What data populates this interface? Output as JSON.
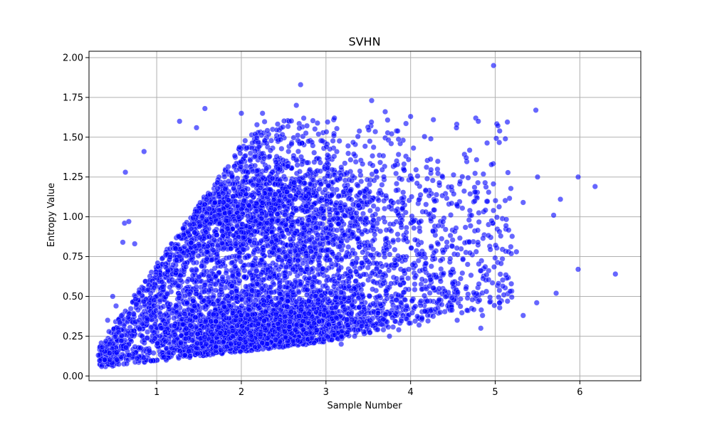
{
  "chart_data": {
    "type": "scatter",
    "title": "SVHN",
    "xlabel": "Sample Number",
    "ylabel": "Entropy Value",
    "xlim": [
      0.2,
      6.72
    ],
    "ylim": [
      -0.03,
      2.04
    ],
    "xticks": [
      1,
      2,
      3,
      4,
      5,
      6
    ],
    "yticks": [
      0.0,
      0.25,
      0.5,
      0.75,
      1.0,
      1.25,
      1.5,
      1.75,
      2.0
    ],
    "ytick_labels": [
      "0.00",
      "0.25",
      "0.50",
      "0.75",
      "1.00",
      "1.25",
      "1.50",
      "1.75",
      "2.00"
    ],
    "grid": true,
    "marker_color": "#0000ff",
    "marker_opacity": 0.6,
    "point_count_approx": 6000,
    "points": [
      [
        4.98,
        1.95
      ],
      [
        2.7,
        1.83
      ],
      [
        3.54,
        1.73
      ],
      [
        2.65,
        1.7
      ],
      [
        1.57,
        1.68
      ],
      [
        5.48,
        1.67
      ],
      [
        3.7,
        1.66
      ],
      [
        2.0,
        1.65
      ],
      [
        2.25,
        1.65
      ],
      [
        4.0,
        1.63
      ],
      [
        4.77,
        1.62
      ],
      [
        3.1,
        1.62
      ],
      [
        4.8,
        1.6
      ],
      [
        1.27,
        1.6
      ],
      [
        1.47,
        1.56
      ],
      [
        5.12,
        1.49
      ],
      [
        0.85,
        1.41
      ],
      [
        0.63,
        1.28
      ],
      [
        5.5,
        1.25
      ],
      [
        5.98,
        1.25
      ],
      [
        6.18,
        1.19
      ],
      [
        5.77,
        1.11
      ],
      [
        5.33,
        1.09
      ],
      [
        5.69,
        1.01
      ],
      [
        4.27,
        1.0
      ],
      [
        5.25,
        0.78
      ],
      [
        5.49,
        0.46
      ],
      [
        5.72,
        0.52
      ],
      [
        5.33,
        0.38
      ],
      [
        5.98,
        0.67
      ],
      [
        6.42,
        0.64
      ],
      [
        4.85,
        0.38
      ],
      [
        4.49,
        0.49
      ],
      [
        3.86,
        0.29
      ],
      [
        4.35,
        0.4
      ],
      [
        0.35,
        0.06
      ],
      [
        0.31,
        0.13
      ],
      [
        0.42,
        0.35
      ],
      [
        0.48,
        0.5
      ],
      [
        0.52,
        0.44
      ],
      [
        0.6,
        0.84
      ],
      [
        0.62,
        0.96
      ],
      [
        0.67,
        0.97
      ],
      [
        0.74,
        0.83
      ],
      [
        3.18,
        0.2
      ],
      [
        4.55,
        0.35
      ],
      [
        4.83,
        0.3
      ],
      [
        5.05,
        0.46
      ],
      [
        4.1,
        0.32
      ],
      [
        3.75,
        0.25
      ]
    ]
  }
}
